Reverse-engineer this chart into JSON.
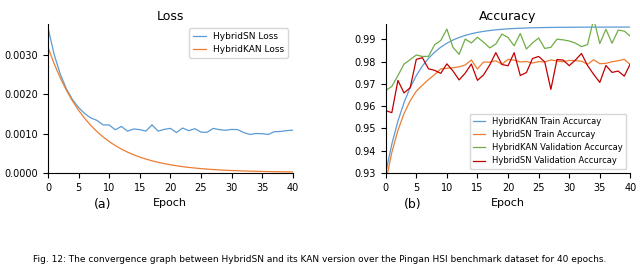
{
  "loss_title": "Loss",
  "acc_title": "Accuracy",
  "xlabel": "Epoch",
  "loss_legend": [
    "HybridSN Loss",
    "HybridKAN Loss"
  ],
  "acc_legend": [
    "HybridKAN Train Accurcay",
    "HybridSN Train Accurcay",
    "HybridKAN Validation Accurcay",
    "HybridSN Validation Accurcay"
  ],
  "loss_colors": [
    "#5B9BD5",
    "#ED7D31"
  ],
  "acc_colors": [
    "#5B9BD5",
    "#ED7D31",
    "#70AD47",
    "#C00000"
  ],
  "subfig_labels": [
    "(a)",
    "(b)"
  ],
  "caption": "Fig. 12: The convergence graph between HybridSN and its KAN version over the Pingan HSI benchmark dataset for 40 epochs.",
  "loss_ylim_max": 0.0038,
  "acc_ylim_min": 0.93,
  "acc_ylim_max": 0.997,
  "xlim_max": 40
}
